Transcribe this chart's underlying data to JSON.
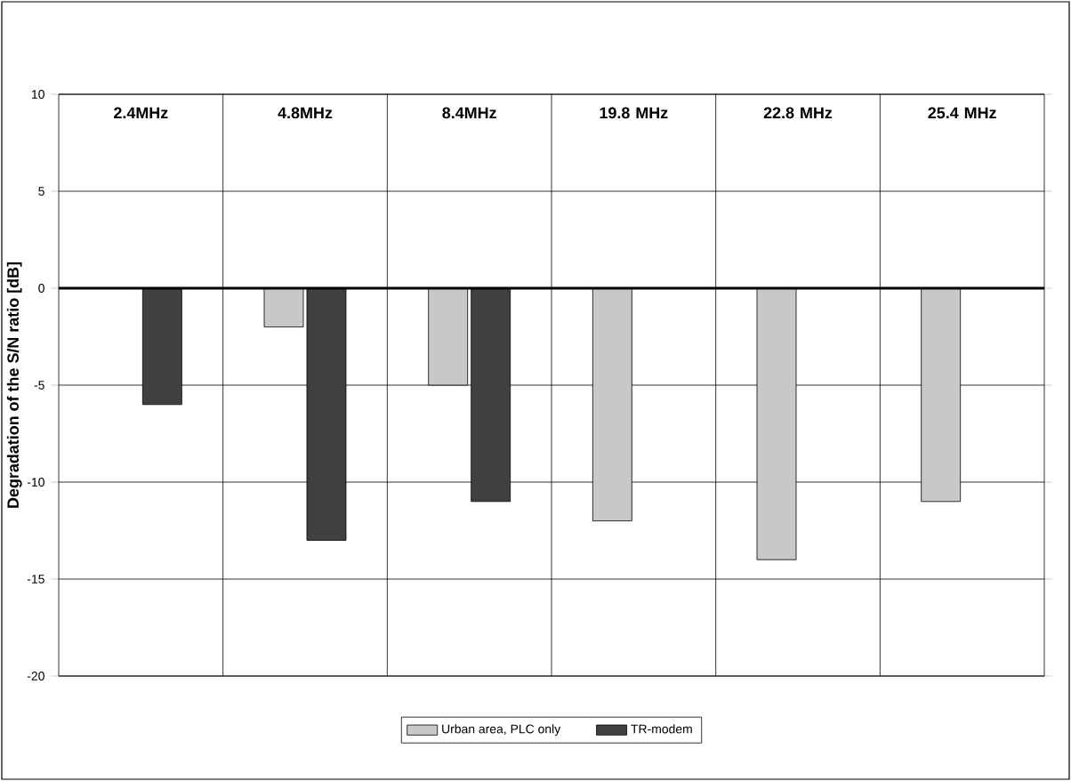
{
  "chart_data": {
    "type": "bar",
    "ylabel": "Degradation of the S/N ratio [dB]",
    "categories": [
      "2.4MHz",
      "4.8MHz",
      "8.4MHz",
      "19.8 MHz",
      "22.8 MHz",
      "25.4 MHz"
    ],
    "series": [
      {
        "name": "Urban area, PLC only",
        "color": "#c8c8c8",
        "values": [
          null,
          -2,
          -5,
          -12,
          -14,
          -11
        ]
      },
      {
        "name": "TR-modem",
        "color": "#404040",
        "values": [
          -6,
          -13,
          -11,
          null,
          null,
          null
        ]
      }
    ],
    "ylim": [
      -20,
      10
    ],
    "yticks": [
      -20,
      -15,
      -10,
      -5,
      0,
      5,
      10
    ],
    "grid": "y",
    "legend": "bottom",
    "ref_lines": [
      {
        "axis": "y",
        "value": 0,
        "color": "#000000"
      }
    ]
  }
}
